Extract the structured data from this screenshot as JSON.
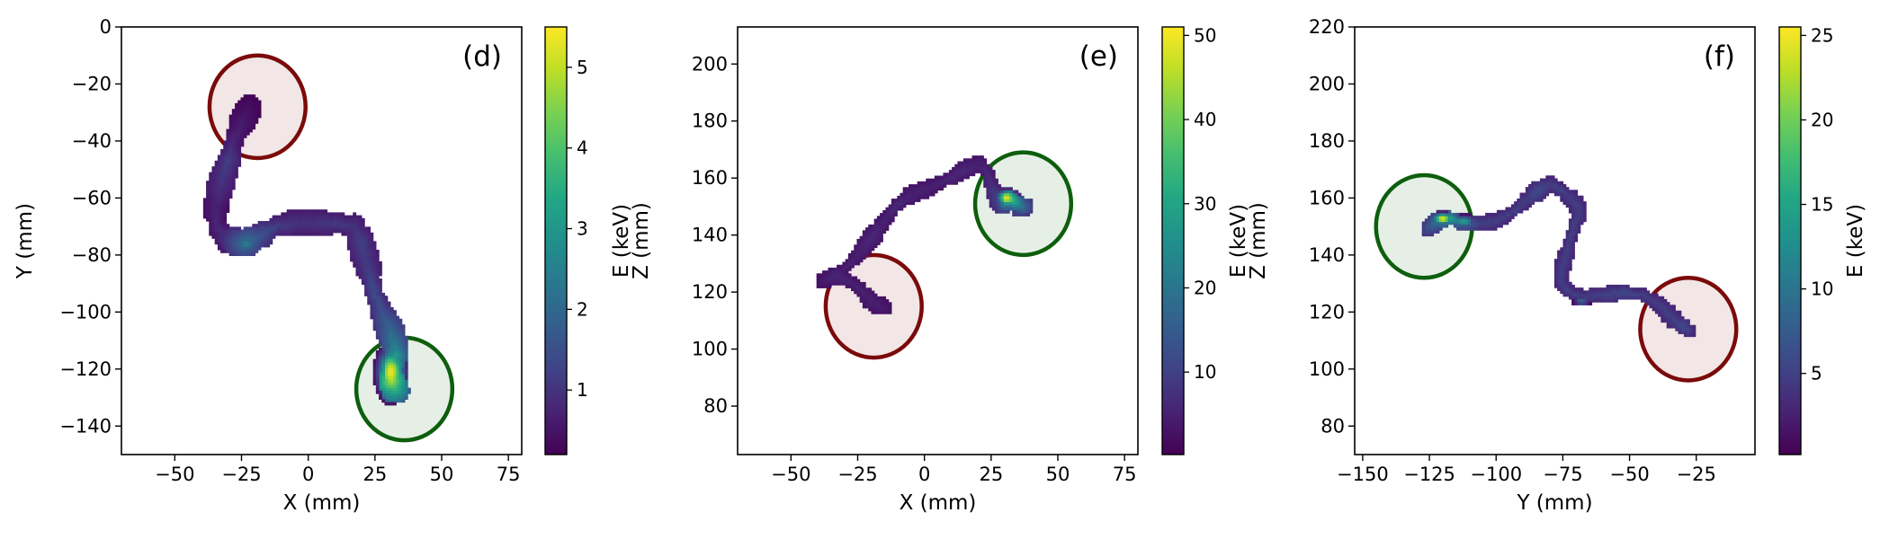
{
  "chart_data": [
    {
      "type": "heatmap",
      "panel_label": "(d)",
      "xlabel": "X (mm)",
      "ylabel": "Y (mm)",
      "xlim": [
        -70,
        80
      ],
      "ylim": [
        -150,
        0
      ],
      "xticks": [
        -50,
        -25,
        0,
        25,
        50,
        75
      ],
      "yticks": [
        0,
        -20,
        -40,
        -60,
        -80,
        -100,
        -120,
        -140
      ],
      "colorbar": {
        "label": "E (keV)",
        "range": [
          0.2,
          5.5
        ],
        "ticks": [
          1,
          2,
          3,
          4,
          5
        ]
      },
      "circles": [
        {
          "kind": "start",
          "color": "#7b0a0a",
          "center": [
            -19,
            -28
          ],
          "rx": 18,
          "ry": 18
        },
        {
          "kind": "end",
          "color": "#0d5e0d",
          "center": [
            36,
            -127
          ],
          "rx": 18,
          "ry": 18
        }
      ],
      "track": [
        [
          -22,
          -28,
          0.4
        ],
        [
          -25,
          -33,
          0.6
        ],
        [
          -28,
          -40,
          0.8
        ],
        [
          -30,
          -47,
          1.2
        ],
        [
          -33,
          -55,
          1.0
        ],
        [
          -35,
          -63,
          0.7
        ],
        [
          -34,
          -70,
          0.8
        ],
        [
          -30,
          -75,
          1.0
        ],
        [
          -24,
          -76,
          2.2
        ],
        [
          -18,
          -73,
          1.6
        ],
        [
          -12,
          -70,
          1.2
        ],
        [
          -5,
          -69,
          1.0
        ],
        [
          3,
          -69,
          1.0
        ],
        [
          11,
          -69,
          1.1
        ],
        [
          17,
          -70,
          1.0
        ],
        [
          20,
          -76,
          1.2
        ],
        [
          22,
          -83,
          1.1
        ],
        [
          24,
          -91,
          1.4
        ],
        [
          27,
          -99,
          1.5
        ],
        [
          31,
          -107,
          2.0
        ],
        [
          33,
          -114,
          2.8
        ],
        [
          32,
          -120,
          4.2
        ],
        [
          31,
          -124,
          5.0
        ],
        [
          33,
          -128,
          3.0
        ]
      ],
      "blobs": [
        [
          31,
          -121,
          4,
          7,
          5.3
        ],
        [
          -23,
          -76,
          3,
          2,
          2.4
        ]
      ],
      "width": [
        3,
        5
      ]
    },
    {
      "type": "heatmap",
      "panel_label": "(e)",
      "xlabel": "X (mm)",
      "ylabel": "Z (mm)",
      "xlim": [
        -70,
        80
      ],
      "ylim": [
        63,
        213
      ],
      "xticks": [
        -50,
        -25,
        0,
        25,
        50,
        75
      ],
      "yticks": [
        80,
        100,
        120,
        140,
        160,
        180,
        200
      ],
      "colorbar": {
        "label": "E (keV)",
        "range": [
          0.2,
          51
        ],
        "ticks": [
          10,
          20,
          30,
          40,
          50
        ]
      },
      "circles": [
        {
          "kind": "start",
          "color": "#7b0a0a",
          "center": [
            -19,
            115
          ],
          "rx": 18,
          "ry": 18
        },
        {
          "kind": "end",
          "color": "#0d5e0d",
          "center": [
            37,
            151
          ],
          "rx": 18,
          "ry": 18
        }
      ],
      "track": [
        [
          -15,
          114,
          4
        ],
        [
          -20,
          117,
          5
        ],
        [
          -24,
          121,
          5
        ],
        [
          -28,
          124,
          5
        ],
        [
          -33,
          126,
          6
        ],
        [
          -38,
          124,
          4
        ],
        [
          -30,
          128,
          5
        ],
        [
          -25,
          133,
          5
        ],
        [
          -20,
          139,
          6
        ],
        [
          -15,
          145,
          5
        ],
        [
          -10,
          151,
          6
        ],
        [
          -5,
          154,
          5
        ],
        [
          0,
          156,
          5
        ],
        [
          5,
          158,
          5
        ],
        [
          10,
          160,
          6
        ],
        [
          15,
          163,
          6
        ],
        [
          20,
          165,
          5
        ],
        [
          23,
          163,
          6
        ],
        [
          25,
          158,
          7
        ],
        [
          27,
          153,
          10
        ],
        [
          29,
          150,
          12
        ],
        [
          32,
          153,
          40
        ],
        [
          35,
          151,
          25
        ],
        [
          38,
          150,
          15
        ],
        [
          34,
          148,
          12
        ]
      ],
      "blobs": [
        [
          31,
          153,
          3,
          2,
          48
        ]
      ],
      "width": [
        2,
        3
      ]
    },
    {
      "type": "heatmap",
      "panel_label": "(f)",
      "xlabel": "Y (mm)",
      "ylabel": "Z (mm)",
      "xlim": [
        -153,
        -3
      ],
      "ylim": [
        70,
        220
      ],
      "xticks": [
        -150,
        -125,
        -100,
        -75,
        -50,
        -25
      ],
      "yticks": [
        80,
        100,
        120,
        140,
        160,
        180,
        200,
        220
      ],
      "colorbar": {
        "label": "E (keV)",
        "range": [
          0.2,
          25.5
        ],
        "ticks": [
          5,
          10,
          15,
          20,
          25
        ]
      },
      "circles": [
        {
          "kind": "end",
          "color": "#0d5e0d",
          "center": [
            -127,
            150
          ],
          "rx": 18,
          "ry": 18
        },
        {
          "kind": "start",
          "color": "#7b0a0a",
          "center": [
            -28,
            114
          ],
          "rx": 18,
          "ry": 18
        }
      ],
      "track": [
        [
          -126,
          149,
          6
        ],
        [
          -122,
          152,
          10
        ],
        [
          -117,
          153,
          14
        ],
        [
          -112,
          151,
          8
        ],
        [
          -106,
          151,
          5
        ],
        [
          -100,
          152,
          5
        ],
        [
          -94,
          155,
          5
        ],
        [
          -89,
          159,
          5
        ],
        [
          -84,
          163,
          6
        ],
        [
          -80,
          165,
          5
        ],
        [
          -76,
          163,
          5
        ],
        [
          -72,
          160,
          5
        ],
        [
          -69,
          156,
          5
        ],
        [
          -71,
          150,
          5
        ],
        [
          -73,
          143,
          5
        ],
        [
          -75,
          137,
          5
        ],
        [
          -76,
          131,
          5
        ],
        [
          -73,
          127,
          5
        ],
        [
          -67,
          125,
          5
        ],
        [
          -60,
          126,
          5
        ],
        [
          -52,
          127,
          6
        ],
        [
          -45,
          126,
          5
        ],
        [
          -38,
          122,
          5
        ],
        [
          -34,
          118,
          5
        ],
        [
          -30,
          115,
          6
        ],
        [
          -27,
          113,
          5
        ]
      ],
      "blobs": [
        [
          -120,
          153,
          3,
          1.5,
          24
        ],
        [
          -112,
          152,
          3,
          1.5,
          14
        ],
        [
          -68,
          124,
          2,
          1,
          8
        ]
      ],
      "width": [
        2,
        3
      ]
    }
  ]
}
